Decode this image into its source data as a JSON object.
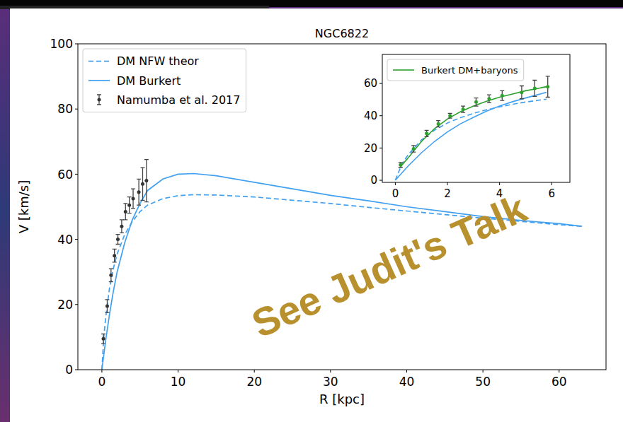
{
  "chart_data": [
    {
      "type": "line",
      "title": "NGC6822",
      "x_label": "R [kpc]",
      "y_label": "V [km/s]",
      "xlim": [
        -3.15,
        66.15
      ],
      "ylim": [
        0,
        100
      ],
      "xticks": [
        0,
        10,
        20,
        30,
        40,
        50,
        60
      ],
      "yticks": [
        0,
        20,
        40,
        60,
        80,
        100
      ],
      "legend": "upper left",
      "annotation": "See Judit's Talk",
      "series": [
        {
          "name": "DM NFW theor",
          "type": "line",
          "color": "#42a0f0",
          "line_style": "dashed",
          "x": [
            0,
            0.25,
            0.5,
            1,
            1.5,
            2,
            3,
            4,
            5,
            6,
            8,
            10,
            12,
            15,
            20,
            25,
            30,
            35,
            40,
            45,
            50,
            55,
            60,
            63
          ],
          "values": [
            0,
            10,
            16,
            25,
            31,
            35.5,
            41.5,
            45.5,
            48.5,
            50.5,
            52.5,
            53.4,
            53.7,
            53.6,
            53,
            52,
            51,
            49.8,
            48.7,
            47.6,
            46.5,
            45.5,
            44.5,
            44
          ]
        },
        {
          "name": "DM Burkert",
          "type": "line",
          "color": "#42a0f0",
          "line_style": "solid",
          "x": [
            0,
            0.25,
            0.5,
            1,
            1.5,
            2,
            3,
            4,
            5,
            6,
            8,
            10,
            12,
            15,
            20,
            25,
            30,
            35,
            40,
            45,
            50,
            55,
            60,
            63
          ],
          "values": [
            0,
            4.5,
            9,
            17,
            24,
            30,
            39,
            46,
            51,
            55,
            58.5,
            60,
            60.2,
            59.5,
            57.5,
            55.5,
            53.5,
            51.8,
            50,
            48.5,
            47,
            45.8,
            44.8,
            44
          ]
        },
        {
          "name": "Namumba et al. 2017",
          "type": "scatter",
          "color": "#333333",
          "marker": "dot",
          "x": [
            0.2,
            0.7,
            1.2,
            1.65,
            2.1,
            2.6,
            3.1,
            3.6,
            4.1,
            4.85,
            5.35,
            5.85
          ],
          "values": [
            9.5,
            19.5,
            29,
            35,
            40,
            44,
            48.5,
            50.5,
            52.5,
            54.5,
            57,
            58
          ],
          "errors": [
            1.5,
            2,
            2,
            2,
            1.5,
            2,
            2.5,
            2.5,
            3,
            4,
            5,
            6.5
          ]
        }
      ]
    },
    {
      "type": "line",
      "xlim": [
        -0.5,
        6.7
      ],
      "ylim": [
        -1.3,
        78
      ],
      "xticks": [
        0,
        2,
        4,
        6
      ],
      "yticks": [
        0,
        20,
        40,
        60
      ],
      "legend": "upper left",
      "series": [
        {
          "type": "line",
          "color": "#42a0f0",
          "line_style": "dashed",
          "x": [
            0,
            0.25,
            0.5,
            1,
            1.5,
            2,
            2.5,
            3,
            3.5,
            4,
            4.5,
            5,
            5.5,
            5.8
          ],
          "values": [
            0,
            10,
            16,
            25,
            31,
            35.5,
            38.8,
            41.5,
            43.7,
            45.5,
            47.1,
            48.5,
            49.6,
            50.3
          ]
        },
        {
          "type": "line",
          "color": "#42a0f0",
          "line_style": "solid",
          "x": [
            0,
            0.25,
            0.5,
            1,
            1.5,
            2,
            2.5,
            3,
            3.5,
            4,
            4.5,
            5,
            5.5,
            5.8
          ],
          "values": [
            0,
            4.5,
            9,
            17,
            24,
            30,
            35,
            39,
            42.8,
            46,
            48.7,
            51,
            53.2,
            54.5
          ]
        },
        {
          "name": "Burkert DM+baryons",
          "type": "line",
          "color": "#2ca02c",
          "line_style": "solid",
          "x": [
            0.2,
            0.5,
            1,
            1.5,
            2,
            2.5,
            3,
            3.5,
            4,
            4.5,
            5,
            5.5,
            5.8
          ],
          "values": [
            8.5,
            14,
            24,
            32,
            38,
            42.5,
            46,
            49,
            51.5,
            53.5,
            55.5,
            57,
            58
          ]
        },
        {
          "type": "scatter",
          "color": "#2ca02c",
          "marker": "dot",
          "x": [
            0.2,
            0.7,
            1.2,
            1.65,
            2.1,
            2.6,
            3.1,
            3.6,
            4.1,
            4.85,
            5.35,
            5.85
          ],
          "values": [
            9.5,
            19.5,
            29,
            35,
            40,
            44,
            48.5,
            50.5,
            52.5,
            54.5,
            57,
            58
          ],
          "errors": [
            1.5,
            2,
            2,
            2,
            1.5,
            2,
            2.5,
            2.5,
            3,
            4,
            5,
            6.5
          ]
        }
      ]
    }
  ]
}
